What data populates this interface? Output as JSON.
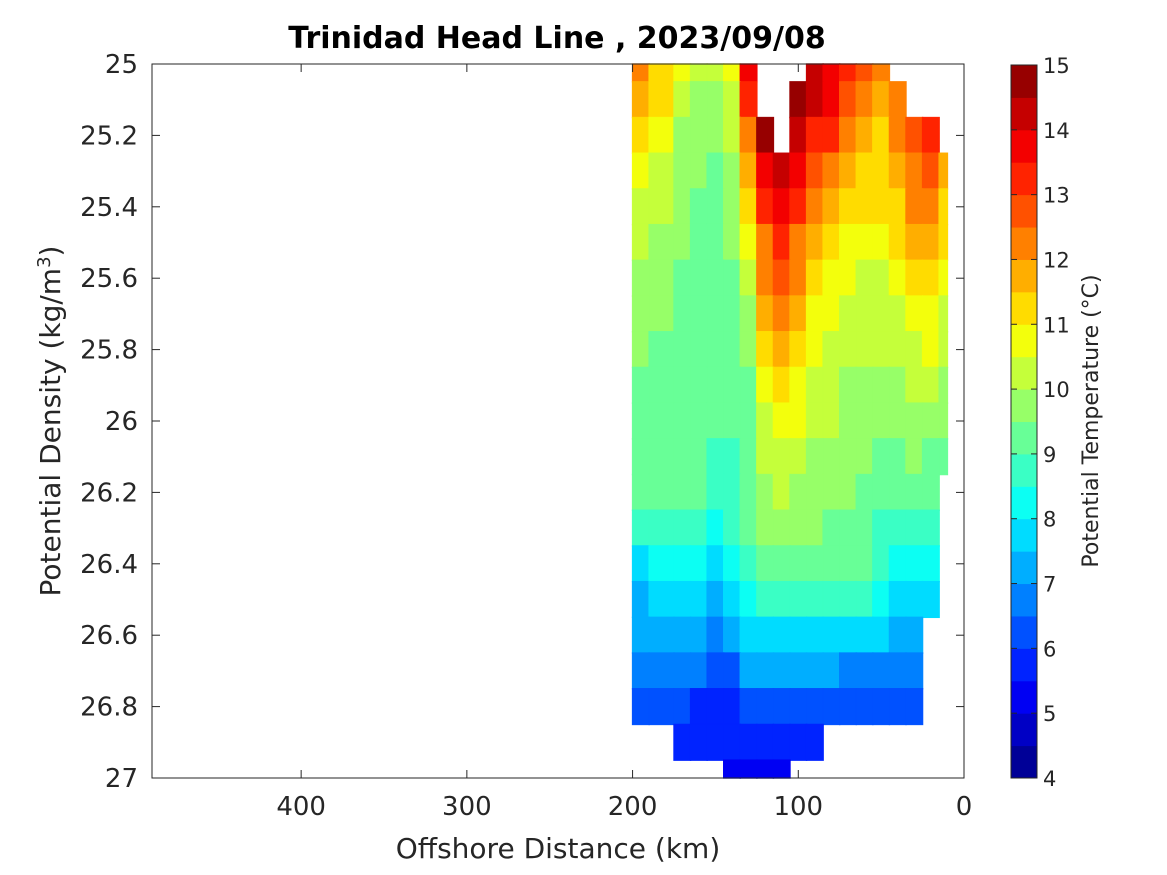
{
  "chart_data": {
    "type": "contour",
    "title": "Trinidad Head Line , 2023/09/08",
    "xlabel": "Offshore Distance (km)",
    "ylabel_main": "Potential Density (kg/m",
    "ylabel_sup": "3",
    "ylabel_close": ")",
    "xlim": [
      490,
      0
    ],
    "ylim": [
      27,
      25
    ],
    "x_reversed": true,
    "y_reversed": true,
    "x_ticks": [
      400,
      300,
      200,
      100,
      0
    ],
    "y_ticks": [
      25,
      25.2,
      25.4,
      25.6,
      25.8,
      26,
      26.2,
      26.4,
      26.6,
      26.8,
      27
    ],
    "colorbar": {
      "label": "Potential Temperature (°C)",
      "range": [
        4,
        15
      ],
      "ticks": [
        4,
        5,
        6,
        7,
        8,
        9,
        10,
        11,
        12,
        13,
        14,
        15
      ],
      "colormap": "jet",
      "levels": 22
    },
    "stations_km": [
      200,
      180,
      170,
      160,
      150,
      140,
      130,
      120,
      110,
      100,
      90,
      80,
      70,
      60,
      50,
      40,
      30,
      20,
      10
    ],
    "density_levels": [
      25.0,
      25.1,
      25.2,
      25.3,
      25.4,
      25.5,
      25.6,
      25.7,
      25.8,
      25.9,
      26.0,
      26.1,
      26.2,
      26.3,
      26.4,
      26.5,
      26.6,
      26.7,
      26.8,
      26.9,
      27.0
    ],
    "temperature": [
      [
        12.2,
        11.5,
        10.5,
        10.0,
        10.0,
        10.5,
        13.8,
        null,
        null,
        null,
        14.2,
        13.8,
        13.2,
        12.5,
        12.0,
        null,
        null,
        null,
        null
      ],
      [
        11.8,
        11.0,
        10.0,
        9.8,
        9.8,
        10.2,
        13.0,
        null,
        null,
        14.8,
        14.0,
        13.5,
        12.8,
        12.2,
        11.8,
        12.0,
        null,
        null,
        null
      ],
      [
        11.2,
        10.5,
        9.8,
        9.6,
        9.6,
        10.0,
        12.2,
        14.6,
        null,
        14.4,
        13.4,
        13.0,
        12.4,
        11.8,
        11.5,
        12.2,
        12.8,
        13.0,
        null
      ],
      [
        10.8,
        10.2,
        9.6,
        9.5,
        9.4,
        9.8,
        11.6,
        13.6,
        14.2,
        13.6,
        12.8,
        12.4,
        11.8,
        11.4,
        11.2,
        11.8,
        12.4,
        12.6,
        11.8
      ],
      [
        10.4,
        10.0,
        9.5,
        9.4,
        9.4,
        9.6,
        11.0,
        13.0,
        13.6,
        13.0,
        12.2,
        11.8,
        11.2,
        11.0,
        11.0,
        11.4,
        12.0,
        12.2,
        11.4
      ],
      [
        10.1,
        9.8,
        9.5,
        9.3,
        9.3,
        9.5,
        10.6,
        12.4,
        13.0,
        12.4,
        11.6,
        11.2,
        10.8,
        10.6,
        10.6,
        11.0,
        11.6,
        11.6,
        11.0
      ],
      [
        9.9,
        9.6,
        9.4,
        9.3,
        9.3,
        9.4,
        10.2,
        12.0,
        12.6,
        12.0,
        11.2,
        10.9,
        10.5,
        10.4,
        10.4,
        10.6,
        11.2,
        11.2,
        10.6
      ],
      [
        9.7,
        9.5,
        9.4,
        9.3,
        9.3,
        9.3,
        9.9,
        11.6,
        12.2,
        11.6,
        10.9,
        10.6,
        10.2,
        10.2,
        10.2,
        10.3,
        10.8,
        10.8,
        10.3
      ],
      [
        9.5,
        9.4,
        9.3,
        9.3,
        9.2,
        9.2,
        9.6,
        11.2,
        11.8,
        11.2,
        10.6,
        10.4,
        10.0,
        10.0,
        10.0,
        10.0,
        10.4,
        10.5,
        10.1
      ],
      [
        9.4,
        9.3,
        9.3,
        9.2,
        9.1,
        9.1,
        9.4,
        10.8,
        11.2,
        10.8,
        10.3,
        10.2,
        9.8,
        9.8,
        9.8,
        9.8,
        10.1,
        10.2,
        9.9
      ],
      [
        9.3,
        9.3,
        9.2,
        9.2,
        9.0,
        9.0,
        9.3,
        10.4,
        10.8,
        10.5,
        10.1,
        10.0,
        9.7,
        9.6,
        9.6,
        9.6,
        9.8,
        9.9,
        9.6
      ],
      [
        9.2,
        9.2,
        9.2,
        9.1,
        8.9,
        8.9,
        9.2,
        10.1,
        10.4,
        10.2,
        9.9,
        9.8,
        9.6,
        9.5,
        9.4,
        9.4,
        9.5,
        9.4,
        9.2
      ],
      [
        9.0,
        9.1,
        9.1,
        9.0,
        8.6,
        8.8,
        9.1,
        9.8,
        10.0,
        9.9,
        9.7,
        9.6,
        9.5,
        9.4,
        9.1,
        9.1,
        9.1,
        9.0,
        null
      ],
      [
        8.6,
        8.8,
        8.9,
        8.8,
        8.2,
        8.6,
        9.0,
        9.5,
        9.7,
        9.6,
        9.5,
        9.4,
        9.3,
        9.2,
        8.9,
        8.9,
        8.8,
        8.7,
        null
      ],
      [
        7.8,
        8.2,
        8.4,
        8.3,
        7.6,
        8.3,
        8.8,
        9.1,
        9.3,
        9.3,
        9.2,
        9.1,
        9.1,
        9.0,
        8.7,
        8.4,
        8.3,
        8.2,
        null
      ],
      [
        7.4,
        7.6,
        7.7,
        7.6,
        7.0,
        7.6,
        8.4,
        8.6,
        8.7,
        8.7,
        8.6,
        8.5,
        8.7,
        8.6,
        8.2,
        7.9,
        7.8,
        7.6,
        null
      ],
      [
        7.0,
        7.1,
        7.2,
        7.1,
        6.6,
        7.0,
        7.9,
        7.8,
        7.6,
        7.8,
        7.9,
        7.8,
        7.8,
        7.6,
        7.5,
        7.3,
        7.2,
        null,
        null
      ],
      [
        6.6,
        6.7,
        6.6,
        6.5,
        6.2,
        6.4,
        7.0,
        7.1,
        7.0,
        7.0,
        7.1,
        7.0,
        6.9,
        6.9,
        6.8,
        6.8,
        6.8,
        null,
        null
      ],
      [
        6.2,
        6.2,
        6.0,
        5.9,
        5.7,
        5.9,
        6.3,
        6.4,
        6.4,
        6.4,
        6.4,
        6.3,
        6.4,
        6.4,
        6.4,
        6.4,
        6.4,
        null,
        null
      ],
      [
        null,
        null,
        5.6,
        5.6,
        5.5,
        5.6,
        5.8,
        5.9,
        5.9,
        5.8,
        5.7,
        null,
        null,
        null,
        null,
        null,
        null,
        null,
        null
      ],
      [
        null,
        null,
        null,
        null,
        null,
        5.3,
        5.4,
        5.4,
        5.3,
        null,
        null,
        null,
        null,
        null,
        null,
        null,
        null,
        null,
        null
      ]
    ]
  }
}
